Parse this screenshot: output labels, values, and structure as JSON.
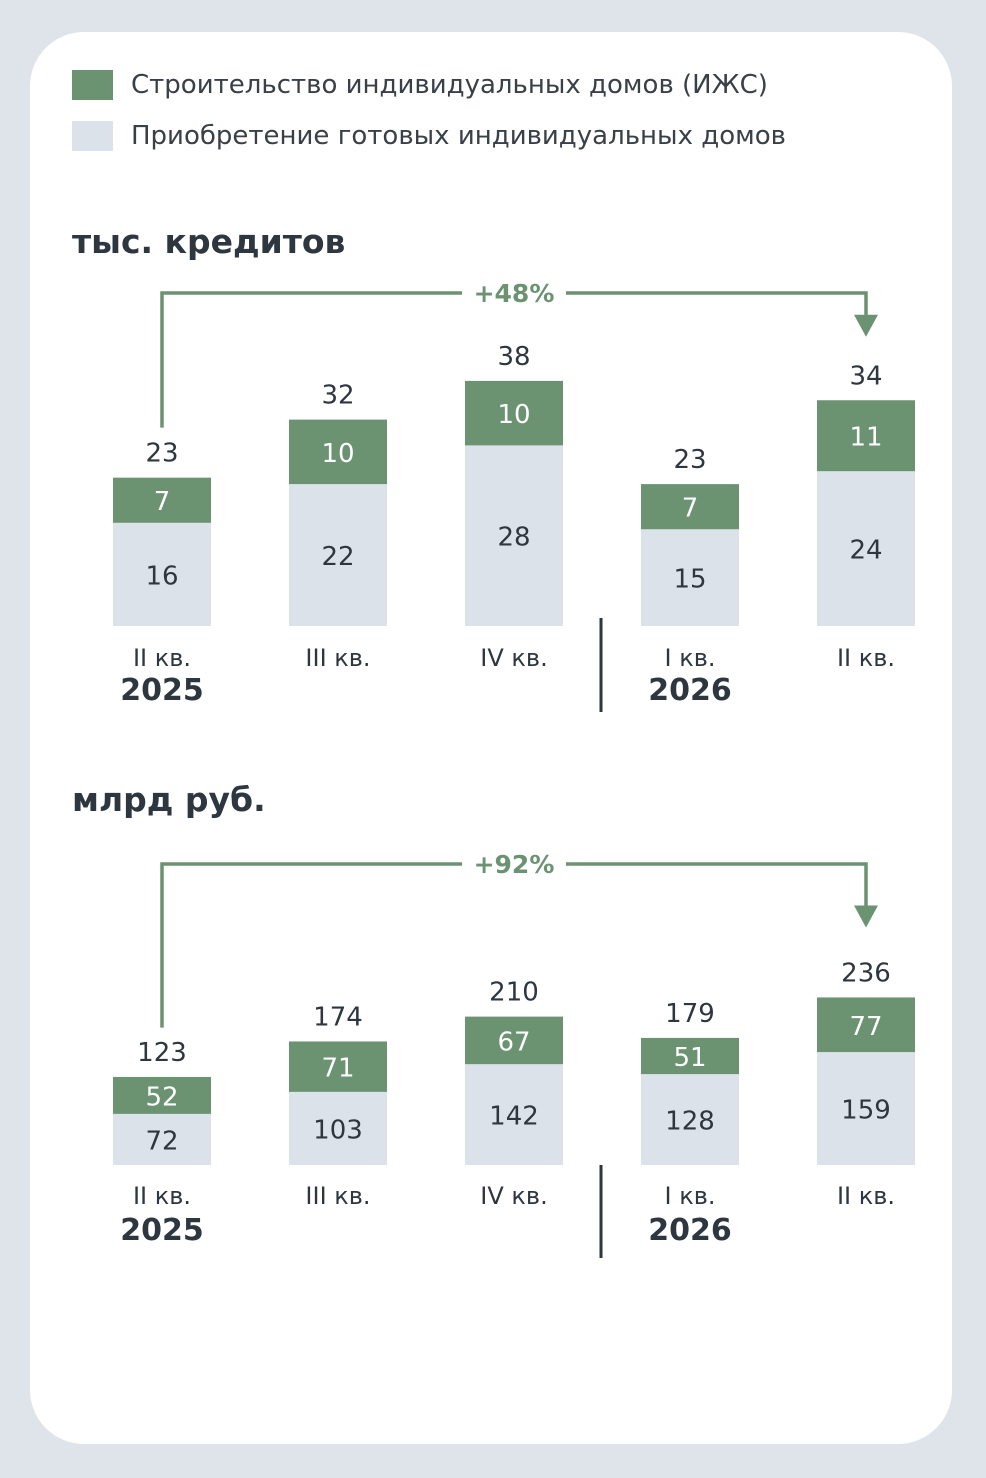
{
  "legend": [
    {
      "label": "Строительство индивидуальных домов (ИЖС)",
      "color": "#6b9372"
    },
    {
      "label": "Приобретение готовых индивидуальных домов",
      "color": "#dce2ea"
    }
  ],
  "chart_data": [
    {
      "type": "bar",
      "stacked": true,
      "title": "тыс. кредитов",
      "categories": [
        "II кв.",
        "III кв.",
        "IV кв.",
        "I кв.",
        "II кв."
      ],
      "years": [
        {
          "label": "2025",
          "category_index": 0
        },
        {
          "label": "2026",
          "category_index": 3
        }
      ],
      "series": [
        {
          "name": "Приобретение готовых индивидуальных домов",
          "values": [
            16,
            22,
            28,
            15,
            24
          ],
          "color": "#dce2ea"
        },
        {
          "name": "Строительство индивидуальных домов (ИЖС)",
          "values": [
            7,
            10,
            10,
            7,
            11
          ],
          "color": "#6b9372"
        }
      ],
      "totals": [
        23,
        32,
        38,
        23,
        34
      ],
      "annotation": {
        "text": "+48%",
        "from_index": 0,
        "to_index": 4,
        "color": "#6b9372"
      },
      "ylim": [
        0,
        40
      ]
    },
    {
      "type": "bar",
      "stacked": true,
      "title": "млрд руб.",
      "categories": [
        "II кв.",
        "III кв.",
        "IV кв.",
        "I кв.",
        "II кв."
      ],
      "years": [
        {
          "label": "2025",
          "category_index": 0
        },
        {
          "label": "2026",
          "category_index": 3
        }
      ],
      "series": [
        {
          "name": "Приобретение готовых индивидуальных домов",
          "values": [
            72,
            103,
            142,
            128,
            159
          ],
          "color": "#dce2ea"
        },
        {
          "name": "Строительство индивидуальных домов (ИЖС)",
          "values": [
            52,
            71,
            67,
            51,
            77
          ],
          "color": "#6b9372"
        }
      ],
      "totals": [
        123,
        174,
        210,
        179,
        236
      ],
      "annotation": {
        "text": "+92%",
        "from_index": 0,
        "to_index": 4,
        "color": "#6b9372"
      },
      "ylim": [
        0,
        240
      ]
    }
  ]
}
